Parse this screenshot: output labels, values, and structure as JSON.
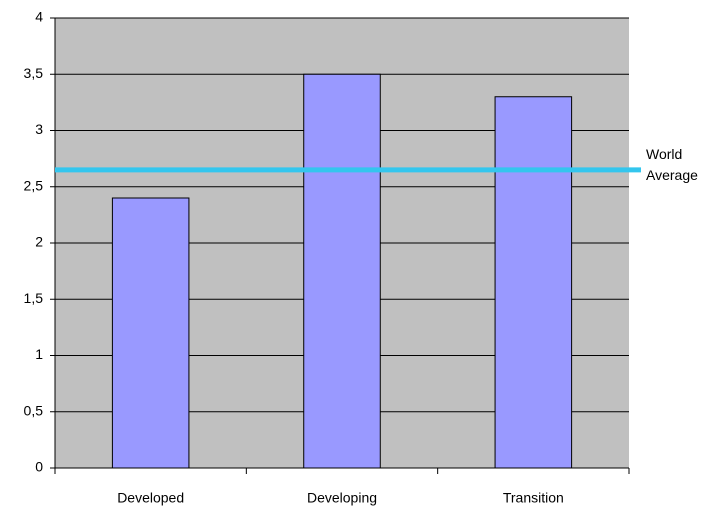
{
  "chart_data": {
    "type": "bar",
    "categories": [
      "Developed",
      "Developing",
      "Transition"
    ],
    "values": [
      2.4,
      3.5,
      3.3
    ],
    "color": "#9999ff",
    "ylim": [
      0,
      4
    ],
    "yticks": [
      0,
      {
        "value": 0.5,
        "label": "0,5"
      },
      1,
      {
        "value": 1.5,
        "label": "1,5"
      },
      2,
      {
        "value": 2.5,
        "label": "2,5"
      },
      3,
      {
        "value": 3.5,
        "label": "3,5"
      },
      4
    ],
    "grid": true,
    "reference_line": {
      "value": 2.65,
      "label": "World Average",
      "color": "#33c6ee"
    }
  }
}
